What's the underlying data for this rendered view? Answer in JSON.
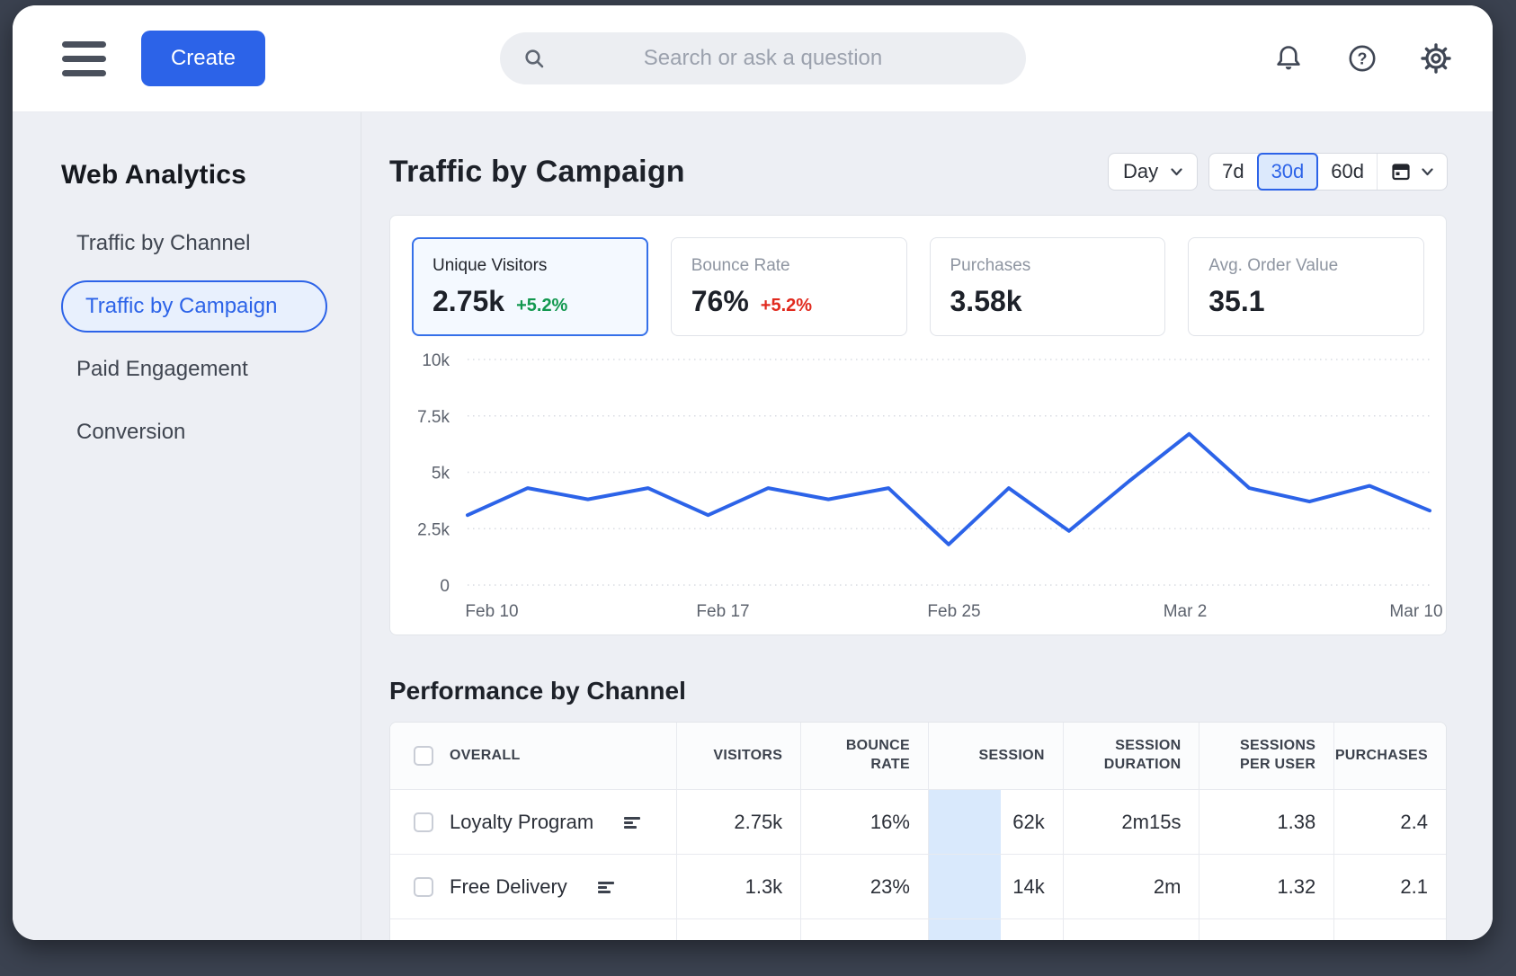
{
  "topbar": {
    "create_label": "Create",
    "search_placeholder": "Search or ask a question",
    "icons": {
      "menu": "hamburger",
      "search": "magnifier",
      "notifications": "bell",
      "help": "question-circle",
      "settings": "gear"
    }
  },
  "sidebar": {
    "title": "Web Analytics",
    "items": [
      {
        "label": "Traffic by Channel",
        "selected": false
      },
      {
        "label": "Traffic by Campaign",
        "selected": true
      },
      {
        "label": "Paid Engagement",
        "selected": false
      },
      {
        "label": "Conversion",
        "selected": false
      }
    ]
  },
  "page": {
    "title": "Traffic by Campaign",
    "granularity": "Day",
    "ranges": [
      "7d",
      "30d",
      "60d"
    ],
    "selected_range": "30d"
  },
  "kpis": [
    {
      "label": "Unique Visitors",
      "value": "2.75k",
      "delta": "+5.2%",
      "delta_color": "#12984f",
      "selected": true
    },
    {
      "label": "Bounce Rate",
      "value": "76%",
      "delta": "+5.2%",
      "delta_color": "#e12a1e",
      "selected": false
    },
    {
      "label": "Purchases",
      "value": "3.58k",
      "delta": "",
      "delta_color": "",
      "selected": false
    },
    {
      "label": "Avg. Order Value",
      "value": "35.1",
      "delta": "",
      "delta_color": "",
      "selected": false
    }
  ],
  "chart_data": {
    "type": "line",
    "title": "Unique Visitors by day",
    "x_tick_labels": [
      "Feb 10",
      "Feb 17",
      "Feb 25",
      "Mar 2",
      "Mar 10"
    ],
    "y_tick_labels": [
      "0",
      "2.5k",
      "5k",
      "7.5k",
      "10k"
    ],
    "ylim": [
      0,
      10000
    ],
    "grid": "horizontal-dotted",
    "legend": "none",
    "line_color": "#2c63e8",
    "values": [
      3100,
      4300,
      3800,
      4300,
      3100,
      4300,
      3800,
      4300,
      1800,
      4300,
      2400,
      4600,
      6700,
      4300,
      3700,
      4400,
      3300
    ]
  },
  "table": {
    "title": "Performance by Channel",
    "columns": [
      "OVERALL",
      "VISITORS",
      "BOUNCE RATE",
      "SESSION",
      "SESSION DURATION",
      "SESSIONS PER USER",
      "PURCHASES"
    ],
    "highlight_color": "#d9e9fc",
    "rows": [
      {
        "name": "Loyalty Program",
        "visitors": "2.75k",
        "bounce_rate": "16%",
        "session": "62k",
        "session_duration": "2m15s",
        "sessions_per_user": "1.38",
        "purchases": "2.4"
      },
      {
        "name": "Free Delivery",
        "visitors": "1.3k",
        "bounce_rate": "23%",
        "session": "14k",
        "session_duration": "2m",
        "sessions_per_user": "1.32",
        "purchases": "2.1"
      },
      {
        "name": "",
        "visitors": "",
        "bounce_rate": "",
        "session": "",
        "session_duration": "",
        "sessions_per_user": "",
        "purchases": ""
      }
    ]
  },
  "colors": {
    "accent_blue": "#2c63e8",
    "positive_green": "#12984f",
    "negative_red": "#e12a1e",
    "frame": "#3b4250",
    "column_highlight": "#d9e9fc"
  }
}
